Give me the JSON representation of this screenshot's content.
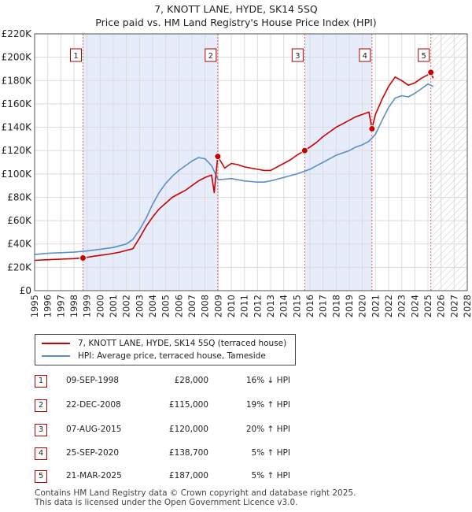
{
  "title": "7, KNOTT LANE, HYDE, SK14 5SQ",
  "subtitle": "Price paid vs. HM Land Registry's House Price Index (HPI)",
  "chart_data": {
    "type": "line",
    "title": "7, KNOTT LANE, HYDE, SK14 5SQ",
    "xlim": [
      1995,
      2028
    ],
    "ylim": [
      0,
      220000
    ],
    "y_ticks": [
      0,
      20000,
      40000,
      60000,
      80000,
      100000,
      120000,
      140000,
      160000,
      180000,
      200000,
      220000
    ],
    "y_tick_labels": [
      "£0",
      "£20K",
      "£40K",
      "£60K",
      "£80K",
      "£100K",
      "£120K",
      "£140K",
      "£160K",
      "£180K",
      "£200K",
      "£220K"
    ],
    "x_ticks": [
      1995,
      1996,
      1997,
      1998,
      1999,
      2000,
      2001,
      2002,
      2003,
      2004,
      2005,
      2006,
      2007,
      2008,
      2009,
      2010,
      2011,
      2012,
      2013,
      2014,
      2015,
      2016,
      2017,
      2018,
      2019,
      2020,
      2021,
      2022,
      2023,
      2024,
      2025,
      2026,
      2027,
      2028
    ],
    "x_tick_labels": [
      "1995",
      "1996",
      "1997",
      "1998",
      "1999",
      "2000",
      "2001",
      "2002",
      "2003",
      "2004",
      "2005",
      "2006",
      "2007",
      "2008",
      "2009",
      "2010",
      "2011",
      "2012",
      "2013",
      "2014",
      "2015",
      "2016",
      "2017",
      "2018",
      "2019",
      "2020",
      "2021",
      "2022",
      "2023",
      "2024",
      "2025",
      "2026",
      "2027",
      "2028"
    ],
    "hatch_from": 2025.25,
    "series": [
      {
        "name": "7, KNOTT LANE, HYDE, SK14 5SQ (terraced house)",
        "color": "#cc0000",
        "x": [
          1995.0,
          1996.0,
          1997.0,
          1998.0,
          1998.69,
          1999.5,
          2000.5,
          2001.5,
          2002.5,
          2003.0,
          2003.5,
          2004.0,
          2004.5,
          2005.0,
          2005.5,
          2006.0,
          2006.5,
          2007.0,
          2007.5,
          2008.0,
          2008.5,
          2008.7,
          2008.97,
          2009.5,
          2010.0,
          2010.5,
          2011.0,
          2011.5,
          2012.0,
          2012.5,
          2013.0,
          2013.5,
          2014.0,
          2014.5,
          2015.0,
          2015.6,
          2016.0,
          2016.5,
          2017.0,
          2017.5,
          2018.0,
          2018.5,
          2019.0,
          2019.5,
          2020.0,
          2020.5,
          2020.73,
          2021.0,
          2021.5,
          2022.0,
          2022.5,
          2023.0,
          2023.5,
          2024.0,
          2024.5,
          2025.0,
          2025.22,
          2025.4
        ],
        "values": [
          26000,
          26500,
          27000,
          27500,
          28000,
          29500,
          31000,
          33000,
          36000,
          45000,
          55000,
          63000,
          70000,
          75000,
          80000,
          83000,
          86000,
          90000,
          94000,
          97000,
          99000,
          84000,
          115000,
          105000,
          109000,
          108000,
          106000,
          105000,
          104000,
          103000,
          103000,
          106000,
          109000,
          112000,
          116000,
          120000,
          123000,
          127000,
          132000,
          136000,
          140000,
          143000,
          146000,
          149000,
          151000,
          153000,
          138700,
          151000,
          164000,
          175000,
          183000,
          180000,
          176000,
          178000,
          182000,
          185000,
          187000,
          182000
        ]
      },
      {
        "name": "HPI: Average price, terraced house, Tameside",
        "color": "#5b8fc9",
        "x": [
          1995.0,
          1996.0,
          1997.0,
          1998.0,
          1999.0,
          2000.0,
          2001.0,
          2002.0,
          2002.5,
          2003.0,
          2003.5,
          2004.0,
          2004.5,
          2005.0,
          2005.5,
          2006.0,
          2006.5,
          2007.0,
          2007.5,
          2008.0,
          2008.5,
          2009.0,
          2009.5,
          2010.0,
          2010.5,
          2011.0,
          2011.5,
          2012.0,
          2012.5,
          2013.0,
          2013.5,
          2014.0,
          2014.5,
          2015.0,
          2015.5,
          2016.0,
          2016.5,
          2017.0,
          2017.5,
          2018.0,
          2018.5,
          2019.0,
          2019.5,
          2020.0,
          2020.5,
          2021.0,
          2021.5,
          2022.0,
          2022.5,
          2023.0,
          2023.5,
          2024.0,
          2024.5,
          2025.0,
          2025.4
        ],
        "values": [
          31000,
          32000,
          32500,
          33000,
          34000,
          35500,
          37000,
          40000,
          44000,
          52000,
          62000,
          74000,
          84000,
          92000,
          98000,
          103000,
          107000,
          111000,
          114000,
          113000,
          107000,
          95000,
          95500,
          96000,
          95000,
          94000,
          93500,
          93000,
          93000,
          94000,
          95500,
          97000,
          98500,
          100000,
          102000,
          104000,
          107000,
          110000,
          113000,
          116000,
          118000,
          120000,
          123000,
          125000,
          128000,
          134000,
          146000,
          157000,
          165000,
          167000,
          166000,
          169000,
          173000,
          177000,
          175000
        ]
      }
    ],
    "sales": [
      {
        "num": "1",
        "x": 1998.69,
        "value": 28000
      },
      {
        "num": "2",
        "x": 2008.97,
        "value": 115000
      },
      {
        "num": "3",
        "x": 2015.6,
        "value": 120000
      },
      {
        "num": "4",
        "x": 2020.73,
        "value": 138700
      },
      {
        "num": "5",
        "x": 2025.22,
        "value": 187000
      }
    ]
  },
  "legend": {
    "property": "7, KNOTT LANE, HYDE, SK14 5SQ (terraced house)",
    "hpi": "HPI: Average price, terraced house, Tameside",
    "property_color": "#cc0000",
    "hpi_color": "#5b8fc9"
  },
  "transactions": [
    {
      "num": "1",
      "date": "09-SEP-1998",
      "price": "£28,000",
      "hpi": "16% ↓ HPI"
    },
    {
      "num": "2",
      "date": "22-DEC-2008",
      "price": "£115,000",
      "hpi": "19% ↑ HPI"
    },
    {
      "num": "3",
      "date": "07-AUG-2015",
      "price": "£120,000",
      "hpi": "20% ↑ HPI"
    },
    {
      "num": "4",
      "date": "25-SEP-2020",
      "price": "£138,700",
      "hpi": "5% ↑ HPI"
    },
    {
      "num": "5",
      "date": "21-MAR-2025",
      "price": "£187,000",
      "hpi": "5% ↑ HPI"
    }
  ],
  "footer": {
    "line1": "Contains HM Land Registry data © Crown copyright and database right 2025.",
    "line2": "This data is licensed under the Open Government Licence v3.0."
  }
}
